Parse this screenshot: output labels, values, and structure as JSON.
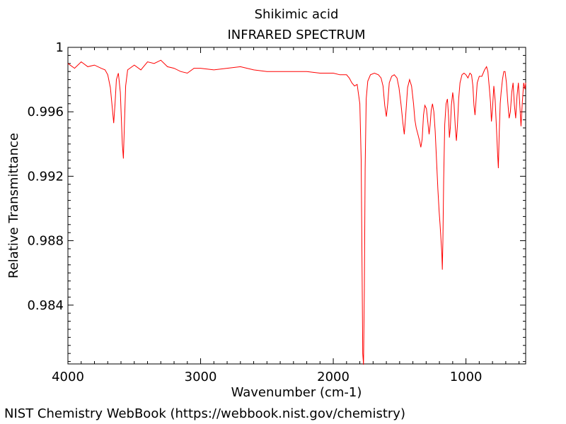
{
  "chart_data": {
    "type": "line",
    "title": "Shikimic acid",
    "subtitle": "INFRARED SPECTRUM",
    "xlabel": "Wavenumber (cm-1)",
    "ylabel": "Relative Transmittance",
    "xlim": [
      4000,
      550
    ],
    "ylim": [
      0.98035,
      1.0
    ],
    "x_ticks": [
      4000,
      3000,
      2000,
      1000
    ],
    "x_tick_labels": [
      "4000",
      "3000",
      "2000",
      "1000"
    ],
    "y_ticks": [
      1.0,
      0.996,
      0.992,
      0.988,
      0.984
    ],
    "y_tick_labels": [
      "1",
      "0.996",
      "0.992",
      "0.988",
      "0.984"
    ],
    "grid": false,
    "series": [
      {
        "color": "#ff0000",
        "points": [
          [
            4000,
            0.999
          ],
          [
            3950,
            0.9987
          ],
          [
            3900,
            0.9991
          ],
          [
            3850,
            0.9988
          ],
          [
            3800,
            0.9989
          ],
          [
            3750,
            0.9987
          ],
          [
            3720,
            0.9986
          ],
          [
            3700,
            0.9983
          ],
          [
            3680,
            0.9975
          ],
          [
            3665,
            0.9962
          ],
          [
            3655,
            0.9953
          ],
          [
            3645,
            0.9965
          ],
          [
            3635,
            0.998
          ],
          [
            3620,
            0.9984
          ],
          [
            3605,
            0.9972
          ],
          [
            3590,
            0.994
          ],
          [
            3582,
            0.9931
          ],
          [
            3575,
            0.995
          ],
          [
            3565,
            0.9976
          ],
          [
            3550,
            0.9986
          ],
          [
            3500,
            0.9989
          ],
          [
            3450,
            0.9986
          ],
          [
            3400,
            0.9991
          ],
          [
            3350,
            0.999
          ],
          [
            3300,
            0.9992
          ],
          [
            3250,
            0.9988
          ],
          [
            3200,
            0.9987
          ],
          [
            3150,
            0.9985
          ],
          [
            3100,
            0.9984
          ],
          [
            3050,
            0.9987
          ],
          [
            3000,
            0.9987
          ],
          [
            2900,
            0.9986
          ],
          [
            2800,
            0.9987
          ],
          [
            2700,
            0.9988
          ],
          [
            2600,
            0.9986
          ],
          [
            2500,
            0.9985
          ],
          [
            2400,
            0.9985
          ],
          [
            2300,
            0.9985
          ],
          [
            2200,
            0.9985
          ],
          [
            2100,
            0.9984
          ],
          [
            2000,
            0.9984
          ],
          [
            1950,
            0.9983
          ],
          [
            1900,
            0.9983
          ],
          [
            1880,
            0.9981
          ],
          [
            1860,
            0.9978
          ],
          [
            1840,
            0.9976
          ],
          [
            1820,
            0.9977
          ],
          [
            1800,
            0.9965
          ],
          [
            1790,
            0.993
          ],
          [
            1783,
            0.986
          ],
          [
            1778,
            0.981
          ],
          [
            1772,
            0.9803
          ],
          [
            1766,
            0.985
          ],
          [
            1760,
            0.9925
          ],
          [
            1752,
            0.9968
          ],
          [
            1740,
            0.9979
          ],
          [
            1720,
            0.9983
          ],
          [
            1690,
            0.9984
          ],
          [
            1660,
            0.9983
          ],
          [
            1640,
            0.9981
          ],
          [
            1625,
            0.9976
          ],
          [
            1612,
            0.9964
          ],
          [
            1600,
            0.9957
          ],
          [
            1590,
            0.9965
          ],
          [
            1578,
            0.9978
          ],
          [
            1560,
            0.9982
          ],
          [
            1540,
            0.9983
          ],
          [
            1520,
            0.9981
          ],
          [
            1505,
            0.9975
          ],
          [
            1490,
            0.9965
          ],
          [
            1475,
            0.9953
          ],
          [
            1465,
            0.9946
          ],
          [
            1455,
            0.9957
          ],
          [
            1440,
            0.9975
          ],
          [
            1425,
            0.998
          ],
          [
            1410,
            0.9976
          ],
          [
            1395,
            0.9965
          ],
          [
            1385,
            0.9955
          ],
          [
            1375,
            0.995
          ],
          [
            1362,
            0.9946
          ],
          [
            1350,
            0.9942
          ],
          [
            1340,
            0.9938
          ],
          [
            1330,
            0.9943
          ],
          [
            1320,
            0.9958
          ],
          [
            1310,
            0.9964
          ],
          [
            1298,
            0.9962
          ],
          [
            1288,
            0.9954
          ],
          [
            1278,
            0.9946
          ],
          [
            1270,
            0.9952
          ],
          [
            1262,
            0.9961
          ],
          [
            1252,
            0.9965
          ],
          [
            1242,
            0.996
          ],
          [
            1232,
            0.9948
          ],
          [
            1222,
            0.993
          ],
          [
            1212,
            0.9912
          ],
          [
            1202,
            0.9898
          ],
          [
            1195,
            0.989
          ],
          [
            1188,
            0.988
          ],
          [
            1182,
            0.9872
          ],
          [
            1178,
            0.9862
          ],
          [
            1174,
            0.988
          ],
          [
            1168,
            0.9918
          ],
          [
            1160,
            0.9952
          ],
          [
            1150,
            0.9965
          ],
          [
            1140,
            0.9968
          ],
          [
            1132,
            0.9958
          ],
          [
            1125,
            0.9944
          ],
          [
            1118,
            0.995
          ],
          [
            1110,
            0.9964
          ],
          [
            1100,
            0.9972
          ],
          [
            1090,
            0.9965
          ],
          [
            1080,
            0.995
          ],
          [
            1072,
            0.9942
          ],
          [
            1064,
            0.9952
          ],
          [
            1055,
            0.9968
          ],
          [
            1045,
            0.9978
          ],
          [
            1030,
            0.9983
          ],
          [
            1015,
            0.9984
          ],
          [
            1000,
            0.9983
          ],
          [
            985,
            0.9981
          ],
          [
            970,
            0.9984
          ],
          [
            958,
            0.9983
          ],
          [
            948,
            0.9976
          ],
          [
            940,
            0.9964
          ],
          [
            932,
            0.9958
          ],
          [
            925,
            0.9966
          ],
          [
            915,
            0.9978
          ],
          [
            900,
            0.9982
          ],
          [
            880,
            0.9982
          ],
          [
            860,
            0.9986
          ],
          [
            845,
            0.9988
          ],
          [
            835,
            0.9985
          ],
          [
            825,
            0.9976
          ],
          [
            815,
            0.9966
          ],
          [
            808,
            0.9954
          ],
          [
            800,
            0.9962
          ],
          [
            790,
            0.9976
          ],
          [
            780,
            0.9967
          ],
          [
            770,
            0.995
          ],
          [
            762,
            0.9935
          ],
          [
            756,
            0.9925
          ],
          [
            750,
            0.9945
          ],
          [
            742,
            0.9965
          ],
          [
            735,
            0.9972
          ],
          [
            725,
            0.998
          ],
          [
            715,
            0.9985
          ],
          [
            705,
            0.9985
          ],
          [
            695,
            0.9978
          ],
          [
            685,
            0.9966
          ],
          [
            675,
            0.9956
          ],
          [
            665,
            0.996
          ],
          [
            655,
            0.9972
          ],
          [
            645,
            0.9978
          ],
          [
            635,
            0.9964
          ],
          [
            625,
            0.9956
          ],
          [
            615,
            0.997
          ],
          [
            605,
            0.9978
          ],
          [
            595,
            0.9965
          ],
          [
            585,
            0.9951
          ],
          [
            575,
            0.9966
          ],
          [
            565,
            0.9978
          ],
          [
            555,
            0.9974
          ],
          [
            550,
            0.9978
          ]
        ]
      }
    ]
  },
  "footer": {
    "credit": "NIST Chemistry WebBook (https://webbook.nist.gov/chemistry)"
  }
}
